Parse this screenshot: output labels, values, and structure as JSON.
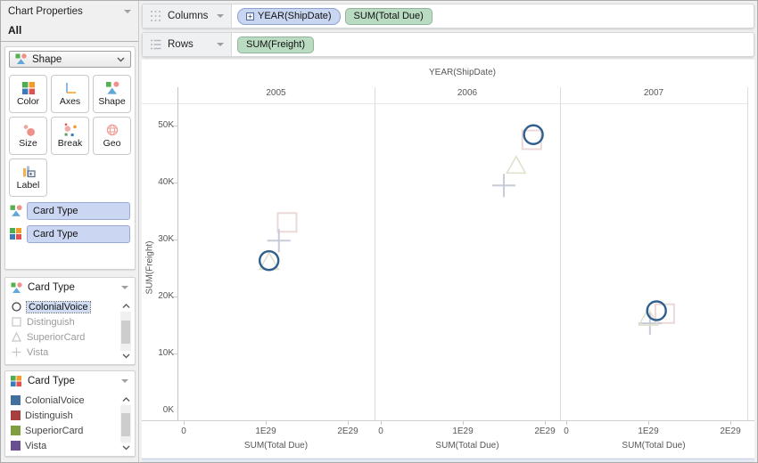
{
  "sidebar": {
    "panel_title": "Chart Properties",
    "section_label": "All",
    "encoding_dropdown": {
      "value": "Shape"
    },
    "buttons": [
      {
        "label": "Color"
      },
      {
        "label": "Axes"
      },
      {
        "label": "Shape"
      },
      {
        "label": "Size"
      },
      {
        "label": "Break"
      },
      {
        "label": "Geo"
      },
      {
        "label": "Label"
      }
    ],
    "encoding_fields": [
      {
        "icon": "shape-encoding",
        "field": "Card Type"
      },
      {
        "icon": "color-encoding",
        "field": "Card Type"
      }
    ],
    "shape_legend": {
      "title": "Card Type",
      "items": [
        {
          "label": "ColonialVoice",
          "marker": "circle",
          "selected": true
        },
        {
          "label": "Distinguish",
          "marker": "square",
          "selected": false
        },
        {
          "label": "SuperiorCard",
          "marker": "triangle",
          "selected": false
        },
        {
          "label": "Vista",
          "marker": "plus",
          "selected": false
        }
      ]
    },
    "color_legend": {
      "title": "Card Type",
      "items": [
        {
          "label": "ColonialVoice",
          "color": "#41709f"
        },
        {
          "label": "Distinguish",
          "color": "#a63f3f"
        },
        {
          "label": "SuperiorCard",
          "color": "#7e9e41"
        },
        {
          "label": "Vista",
          "color": "#6a4f92"
        }
      ]
    }
  },
  "shelves": {
    "columns_label": "Columns",
    "rows_label": "Rows",
    "columns_pills": [
      {
        "text": "YEAR(ShipDate)",
        "kind": "dimension",
        "expandable": true
      },
      {
        "text": "SUM(Total Due)",
        "kind": "measure"
      }
    ],
    "rows_pills": [
      {
        "text": "SUM(Freight)",
        "kind": "measure"
      }
    ]
  },
  "chart_data": {
    "type": "scatter",
    "title": "YEAR(ShipDate)",
    "facets": [
      "2005",
      "2006",
      "2007"
    ],
    "xlabel": "SUM(Total Due)",
    "ylabel": "SUM(Freight)",
    "x_unit": "units of 1E29",
    "y_unit": "thousands (K)",
    "x_ticks": [
      {
        "value": 0,
        "label": "0"
      },
      {
        "value": 1,
        "label": "1E29"
      },
      {
        "value": 2,
        "label": "2E29"
      }
    ],
    "y_ticks": [
      {
        "value": 0,
        "label": "0K"
      },
      {
        "value": 10,
        "label": "10K"
      },
      {
        "value": 20,
        "label": "20K"
      },
      {
        "value": 30,
        "label": "30K"
      },
      {
        "value": 40,
        "label": "40K"
      },
      {
        "value": 50,
        "label": "50K"
      }
    ],
    "series": [
      {
        "name": "ColonialVoice",
        "marker": "circle",
        "color": "#2e5f8e",
        "points": [
          {
            "facet": "2005",
            "x": 1.04,
            "y": 26.3
          },
          {
            "facet": "2006",
            "x": 1.86,
            "y": 48.4
          },
          {
            "facet": "2007",
            "x": 1.1,
            "y": 17.5
          }
        ]
      },
      {
        "name": "Distinguish",
        "marker": "square",
        "color": "#ecd8d7",
        "points": [
          {
            "facet": "2005",
            "x": 1.26,
            "y": 33.0
          },
          {
            "facet": "2006",
            "x": 1.84,
            "y": 47.5
          },
          {
            "facet": "2007",
            "x": 1.2,
            "y": 17.0
          }
        ]
      },
      {
        "name": "SuperiorCard",
        "marker": "triangle",
        "color": "#e2e1cf",
        "points": [
          {
            "facet": "2005",
            "x": 1.04,
            "y": 26.1
          },
          {
            "facet": "2006",
            "x": 1.65,
            "y": 43.0
          },
          {
            "facet": "2007",
            "x": 1.0,
            "y": 16.3
          }
        ]
      },
      {
        "name": "Vista",
        "marker": "plus",
        "color": "#c7cad7",
        "points": [
          {
            "facet": "2005",
            "x": 1.16,
            "y": 29.8
          },
          {
            "facet": "2006",
            "x": 1.5,
            "y": 39.5
          },
          {
            "facet": "2007",
            "x": 1.02,
            "y": 15.3
          }
        ]
      }
    ]
  }
}
